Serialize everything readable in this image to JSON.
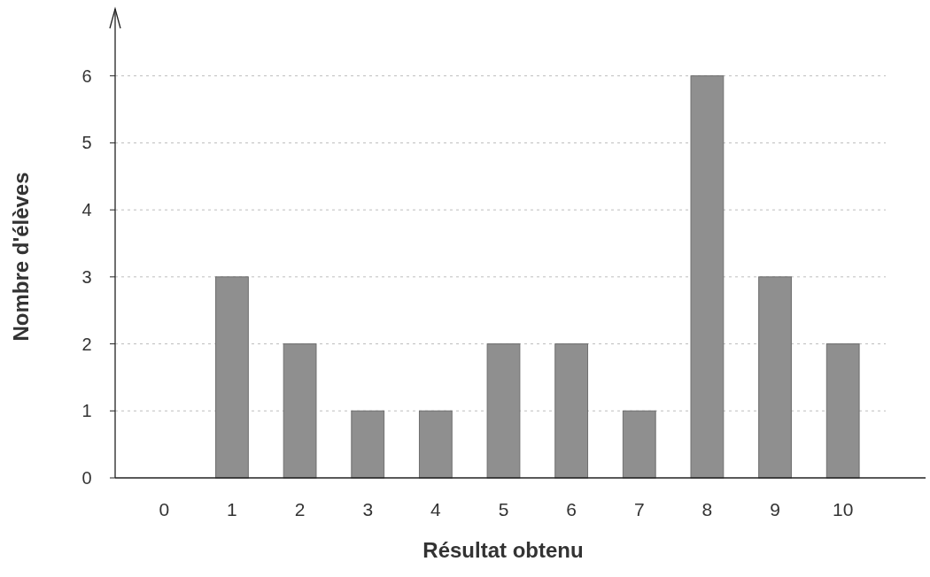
{
  "chart_data": {
    "type": "bar",
    "xlabel": "Résultat obtenu",
    "ylabel": "Nombre d'élèves",
    "categories": [
      "0",
      "1",
      "2",
      "3",
      "4",
      "5",
      "6",
      "7",
      "8",
      "9",
      "10"
    ],
    "values": [
      0,
      3,
      2,
      1,
      1,
      2,
      2,
      1,
      6,
      3,
      2
    ],
    "color": "#8f8f8f",
    "ylim": [
      0,
      7
    ],
    "yticks": [
      0,
      1,
      2,
      3,
      4,
      5,
      6
    ],
    "grid": "y"
  }
}
